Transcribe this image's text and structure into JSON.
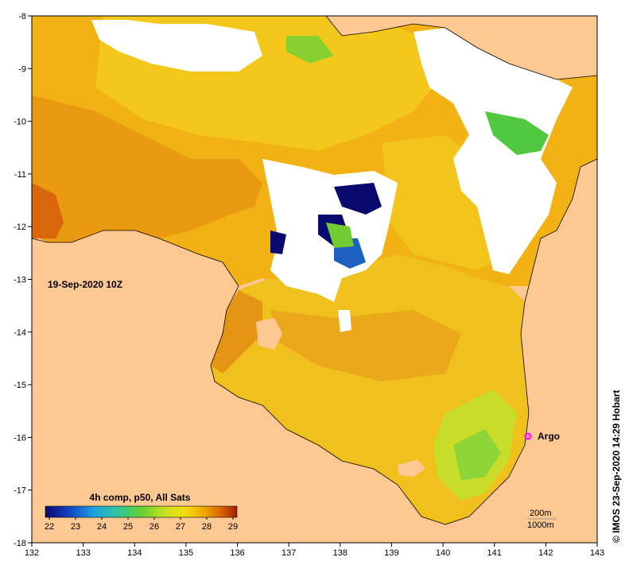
{
  "map": {
    "timestamp_label": "19-Sep-2020 10Z",
    "credit": "© IMOS 23-Sep-2020 14:29 Hobart",
    "argo_label": "Argo",
    "contour_labels": [
      "200m",
      "1000m"
    ],
    "x_ticks": [
      "132",
      "133",
      "134",
      "135",
      "136",
      "137",
      "138",
      "139",
      "140",
      "141",
      "142",
      "143"
    ],
    "y_ticks": [
      "-8",
      "-9",
      "-10",
      "-11",
      "-12",
      "-13",
      "-14",
      "-15",
      "-16",
      "-17",
      "-18"
    ],
    "colorbar": {
      "title": "4h comp, p50, All Sats",
      "ticks": [
        "22",
        "23",
        "24",
        "25",
        "26",
        "27",
        "28",
        "29"
      ],
      "range": [
        22,
        29
      ]
    },
    "argo_position": {
      "lon": 141.7,
      "lat": -16.0
    },
    "colors": {
      "land": "#fdc891",
      "no_data": "#ffffff",
      "argo": "#ff00ff"
    }
  }
}
